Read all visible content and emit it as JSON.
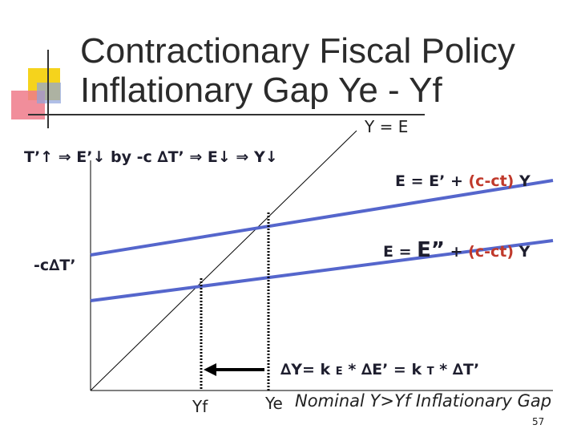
{
  "header": {
    "title_line1": "Contractionary Fiscal Policy",
    "title_line2": "Inflationary Gap Ye - Yf"
  },
  "diagram": {
    "line_45_label": "Y = E",
    "chain": "T’↑ ⇒ E’↓ by -c ∆T’ ⇒ E↓ ⇒ Y↓",
    "upper_line": {
      "lhs": "E = E’ +",
      "coef": "(c-ct)",
      "rhs": "Y"
    },
    "lower_line": {
      "lhs": "E = ",
      "prime": "E”",
      "plus": " +",
      "coef": "(c-ct)",
      "rhs": "Y"
    },
    "shift": "-c∆T’",
    "multiplier": {
      "a": "∆Y= k",
      "sub1": "E",
      "b": "* ∆E’ = k",
      "sub2": "T",
      "c": "* ∆T’"
    },
    "yf": "Yf",
    "ye": "Ye",
    "note": "Nominal Y>Yf Inflationary Gap"
  },
  "footer": {
    "page": "57"
  }
}
